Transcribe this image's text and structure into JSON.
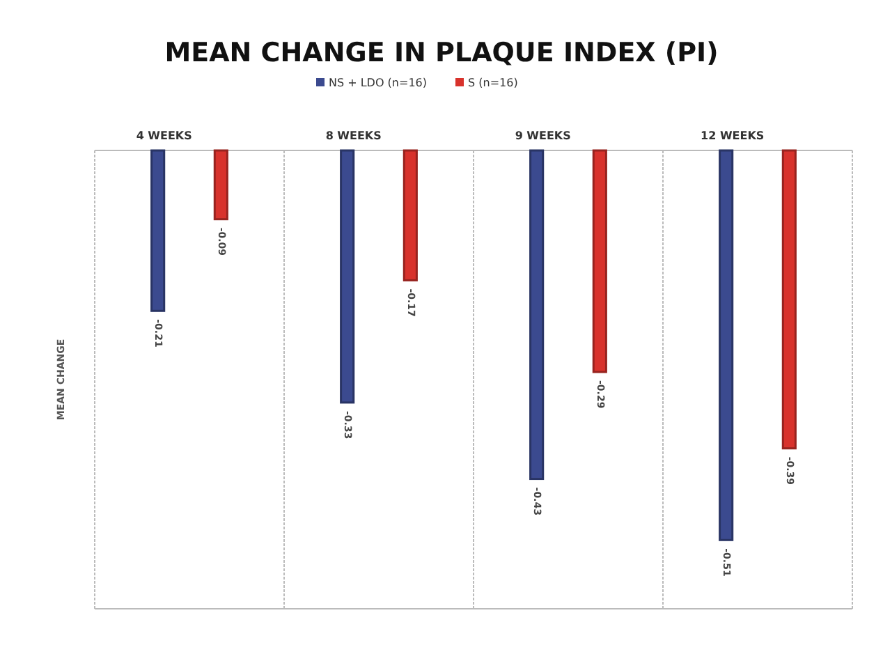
{
  "chart_data": {
    "type": "bar",
    "title": "MEAN CHANGE IN PLAQUE INDEX (PI)",
    "ylabel": "MEAN CHANGE",
    "categories": [
      "4 WEEKS",
      "8 WEEKS",
      "9 WEEKS",
      "12 WEEKS"
    ],
    "series": [
      {
        "name": "NS + LDO (n=16)",
        "color": "#3b4a8f",
        "values": [
          -0.21,
          -0.33,
          -0.43,
          -0.51
        ]
      },
      {
        "name": "S (n=16)",
        "color": "#d8322c",
        "values": [
          -0.09,
          -0.17,
          -0.29,
          -0.39
        ]
      }
    ],
    "ylim": [
      -0.6,
      0
    ],
    "data_labels": true,
    "grid": "x",
    "legend": "top"
  }
}
